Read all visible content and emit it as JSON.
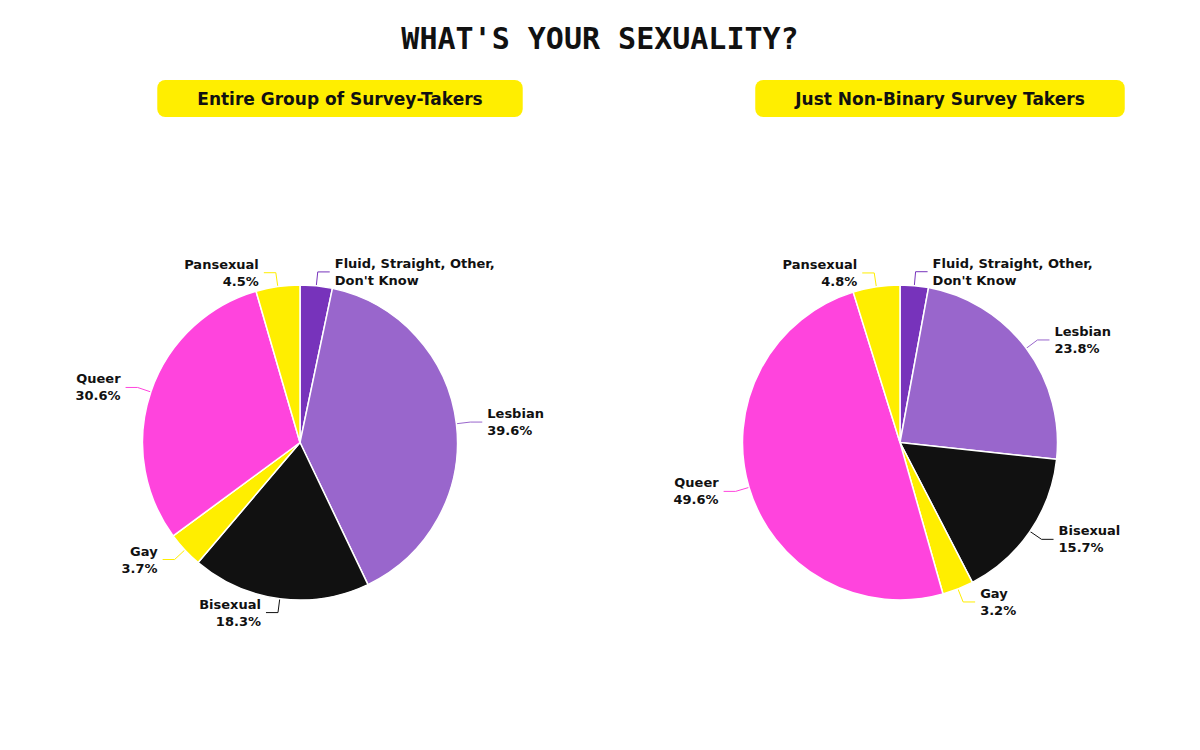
{
  "title": "WHAT'S YOUR SEXUALITY?",
  "chart_data": [
    {
      "type": "pie",
      "title": "Entire Group of Survey-Takers",
      "categories": [
        "Fluid, Straight, Other,\nDon't Know",
        "Lesbian",
        "Bisexual",
        "Gay",
        "Queer",
        "Pansexual"
      ],
      "values": [
        3.3,
        39.6,
        18.3,
        3.7,
        30.6,
        4.5
      ],
      "value_labels": [
        null,
        "39.6%",
        "18.3%",
        "3.7%",
        "30.6%",
        "4.5%"
      ],
      "colors": [
        "#7733bb",
        "#9966cc",
        "#111111",
        "#ffee00",
        "#ff44dd",
        "#ffee00"
      ]
    },
    {
      "type": "pie",
      "title": "Just Non-Binary Survey Takers",
      "categories": [
        "Fluid, Straight, Other,\nDon't Know",
        "Lesbian",
        "Bisexual",
        "Gay",
        "Queer",
        "Pansexual"
      ],
      "values": [
        2.9,
        23.8,
        15.7,
        3.2,
        49.6,
        4.8
      ],
      "value_labels": [
        null,
        "23.8%",
        "15.7%",
        "3.2%",
        "49.6%",
        "4.8%"
      ],
      "colors": [
        "#7733bb",
        "#9966cc",
        "#111111",
        "#ffee00",
        "#ff44dd",
        "#ffee00"
      ]
    }
  ]
}
